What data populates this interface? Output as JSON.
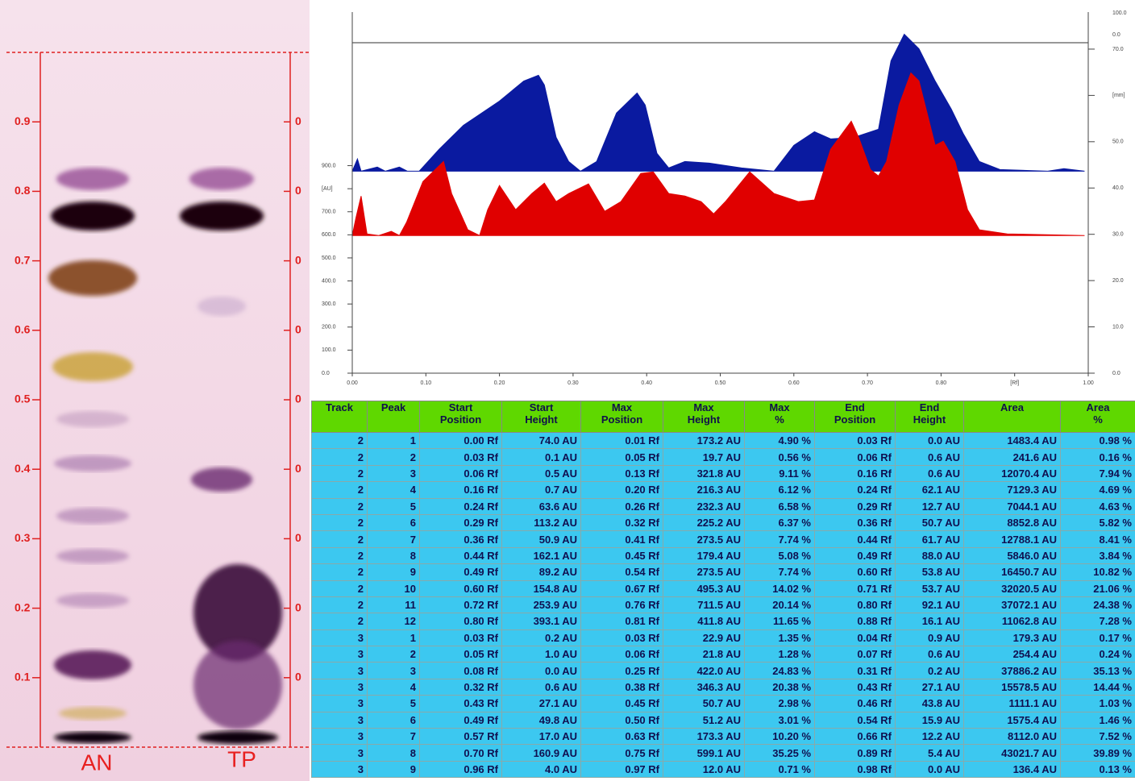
{
  "plate": {
    "ylim": [
      0,
      1
    ],
    "ticks": [
      0.1,
      0.2,
      0.3,
      0.4,
      0.5,
      0.6,
      0.7,
      0.8,
      0.9
    ],
    "right_tick_labels": [
      "0",
      "0",
      "0",
      "0",
      "0",
      "0",
      "0",
      "0",
      "0"
    ],
    "lanes": [
      "AN",
      "TP"
    ]
  },
  "densitogram": {
    "type": "area",
    "xlim": [
      0,
      1
    ],
    "ylim": [
      0,
      1566
    ],
    "y2lim": [
      0,
      78
    ],
    "xticks": [
      {
        "value": 0,
        "label": "0.00"
      },
      {
        "value": 0.1,
        "label": "0.10"
      },
      {
        "value": 0.2,
        "label": "0.20"
      },
      {
        "value": 0.3,
        "label": "0.30"
      },
      {
        "value": 0.4,
        "label": "0.40"
      },
      {
        "value": 0.5,
        "label": "0.50"
      },
      {
        "value": 0.6,
        "label": "0.60"
      },
      {
        "value": 0.7,
        "label": "0.70"
      },
      {
        "value": 0.8,
        "label": "0.80"
      },
      {
        "value": 0.9,
        "label": "[Rf]"
      },
      {
        "value": 1,
        "label": "1.00"
      }
    ],
    "yticks": [
      {
        "value": 0,
        "label": "0.0"
      },
      {
        "value": 100,
        "label": "100.0"
      },
      {
        "value": 200,
        "label": "200.0"
      },
      {
        "value": 300,
        "label": "300.0"
      },
      {
        "value": 400,
        "label": "400.0"
      },
      {
        "value": 500,
        "label": "500.0"
      },
      {
        "value": 600,
        "label": "600.0"
      },
      {
        "value": 700,
        "label": "700.0"
      },
      {
        "value": 800,
        "label": "[AU]"
      },
      {
        "value": 900,
        "label": "900.0"
      }
    ],
    "y2ticks": [
      {
        "value": 0,
        "label": "0.0"
      },
      {
        "value": 10,
        "label": "10.0"
      },
      {
        "value": 20,
        "label": "20.0"
      },
      {
        "value": 30,
        "label": "30.0"
      },
      {
        "value": 40,
        "label": "40.0"
      },
      {
        "value": 50,
        "label": "50.0"
      },
      {
        "value": 60,
        "label": "[mm]"
      },
      {
        "value": 70,
        "label": "70.0"
      }
    ],
    "y2_top_labels": [
      "100.0",
      "0.0"
    ],
    "series": [
      {
        "color": "#0a1aa0",
        "x": [
          0,
          0.007,
          0.012,
          0.034,
          0.045,
          0.064,
          0.075,
          0.091,
          0.118,
          0.151,
          0.2,
          0.233,
          0.253,
          0.261,
          0.277,
          0.294,
          0.31,
          0.332,
          0.359,
          0.387,
          0.398,
          0.414,
          0.43,
          0.452,
          0.485,
          0.529,
          0.573,
          0.6,
          0.628,
          0.65,
          0.682,
          0.715,
          0.732,
          0.75,
          0.77,
          0.792,
          0.814,
          0.83,
          0.852,
          0.88,
          0.945,
          0.967,
          0.995
        ],
        "values": [
          876,
          929,
          876,
          894,
          876,
          894,
          876,
          876,
          971,
          1075,
          1180,
          1267,
          1292,
          1250,
          1023,
          918,
          876,
          918,
          1128,
          1215,
          1163,
          953,
          890,
          918,
          911,
          890,
          876,
          988,
          1047,
          1016,
          1023,
          1058,
          1355,
          1470,
          1407,
          1267,
          1145,
          1040,
          918,
          883,
          876,
          887,
          876
        ]
      },
      {
        "color": "#e00000",
        "x": [
          0,
          0.005,
          0.012,
          0.02,
          0.036,
          0.053,
          0.064,
          0.074,
          0.096,
          0.124,
          0.135,
          0.157,
          0.173,
          0.184,
          0.2,
          0.222,
          0.244,
          0.261,
          0.277,
          0.294,
          0.321,
          0.343,
          0.365,
          0.392,
          0.409,
          0.43,
          0.452,
          0.474,
          0.491,
          0.507,
          0.54,
          0.573,
          0.606,
          0.628,
          0.65,
          0.678,
          0.688,
          0.704,
          0.715,
          0.726,
          0.743,
          0.759,
          0.77,
          0.781,
          0.792,
          0.803,
          0.819,
          0.836,
          0.852,
          0.89,
          0.995
        ],
        "values": [
          597,
          674,
          768,
          604,
          597,
          615,
          597,
          656,
          831,
          918,
          779,
          622,
          597,
          709,
          814,
          709,
          779,
          824,
          744,
          779,
          821,
          702,
          744,
          866,
          873,
          779,
          768,
          744,
          691,
          744,
          873,
          779,
          744,
          751,
          971,
          1093,
          1023,
          883,
          855,
          918,
          1163,
          1302,
          1267,
          1128,
          988,
          1006,
          918,
          709,
          622,
          604,
          597
        ]
      }
    ]
  },
  "table": {
    "columns": [
      [
        "Track"
      ],
      [
        "Peak"
      ],
      [
        "Start",
        "Position"
      ],
      [
        "Start",
        "Height"
      ],
      [
        "Max",
        "Position"
      ],
      [
        "Max",
        "Height"
      ],
      [
        "Max",
        "%"
      ],
      [
        "End",
        "Position"
      ],
      [
        "End",
        "Height"
      ],
      [
        "Area"
      ],
      [
        "Area",
        "%"
      ]
    ],
    "rows": [
      [
        2,
        1,
        "0.00 Rf",
        "74.0 AU",
        "0.01 Rf",
        "173.2 AU",
        "4.90 %",
        "0.03 Rf",
        "0.0 AU",
        "1483.4 AU",
        "0.98 %"
      ],
      [
        2,
        2,
        "0.03 Rf",
        "0.1 AU",
        "0.05 Rf",
        "19.7 AU",
        "0.56 %",
        "0.06 Rf",
        "0.6 AU",
        "241.6 AU",
        "0.16 %"
      ],
      [
        2,
        3,
        "0.06 Rf",
        "0.5 AU",
        "0.13 Rf",
        "321.8 AU",
        "9.11 %",
        "0.16 Rf",
        "0.6 AU",
        "12070.4 AU",
        "7.94 %"
      ],
      [
        2,
        4,
        "0.16 Rf",
        "0.7 AU",
        "0.20 Rf",
        "216.3 AU",
        "6.12 %",
        "0.24 Rf",
        "62.1 AU",
        "7129.3 AU",
        "4.69 %"
      ],
      [
        2,
        5,
        "0.24 Rf",
        "63.6 AU",
        "0.26 Rf",
        "232.3 AU",
        "6.58 %",
        "0.29 Rf",
        "12.7 AU",
        "7044.1 AU",
        "4.63 %"
      ],
      [
        2,
        6,
        "0.29 Rf",
        "113.2 AU",
        "0.32 Rf",
        "225.2 AU",
        "6.37 %",
        "0.36 Rf",
        "50.7 AU",
        "8852.8 AU",
        "5.82 %"
      ],
      [
        2,
        7,
        "0.36 Rf",
        "50.9 AU",
        "0.41 Rf",
        "273.5 AU",
        "7.74 %",
        "0.44 Rf",
        "61.7 AU",
        "12788.1 AU",
        "8.41 %"
      ],
      [
        2,
        8,
        "0.44 Rf",
        "162.1 AU",
        "0.45 Rf",
        "179.4 AU",
        "5.08 %",
        "0.49 Rf",
        "88.0 AU",
        "5846.0 AU",
        "3.84 %"
      ],
      [
        2,
        9,
        "0.49 Rf",
        "89.2 AU",
        "0.54 Rf",
        "273.5 AU",
        "7.74 %",
        "0.60 Rf",
        "53.8 AU",
        "16450.7 AU",
        "10.82 %"
      ],
      [
        2,
        10,
        "0.60 Rf",
        "154.8 AU",
        "0.67 Rf",
        "495.3 AU",
        "14.02 %",
        "0.71 Rf",
        "53.7 AU",
        "32020.5 AU",
        "21.06 %"
      ],
      [
        2,
        11,
        "0.72 Rf",
        "253.9 AU",
        "0.76 Rf",
        "711.5 AU",
        "20.14 %",
        "0.80 Rf",
        "92.1 AU",
        "37072.1 AU",
        "24.38 %"
      ],
      [
        2,
        12,
        "0.80 Rf",
        "393.1 AU",
        "0.81 Rf",
        "411.8 AU",
        "11.65 %",
        "0.88 Rf",
        "16.1 AU",
        "11062.8 AU",
        "7.28 %"
      ],
      [
        3,
        1,
        "0.03 Rf",
        "0.2 AU",
        "0.03 Rf",
        "22.9 AU",
        "1.35 %",
        "0.04 Rf",
        "0.9 AU",
        "179.3 AU",
        "0.17 %"
      ],
      [
        3,
        2,
        "0.05 Rf",
        "1.0 AU",
        "0.06 Rf",
        "21.8 AU",
        "1.28 %",
        "0.07 Rf",
        "0.6 AU",
        "254.4 AU",
        "0.24 %"
      ],
      [
        3,
        3,
        "0.08 Rf",
        "0.0 AU",
        "0.25 Rf",
        "422.0 AU",
        "24.83 %",
        "0.31 Rf",
        "0.2 AU",
        "37886.2 AU",
        "35.13 %"
      ],
      [
        3,
        4,
        "0.32 Rf",
        "0.6 AU",
        "0.38 Rf",
        "346.3 AU",
        "20.38 %",
        "0.43 Rf",
        "27.1 AU",
        "15578.5 AU",
        "14.44 %"
      ],
      [
        3,
        5,
        "0.43 Rf",
        "27.1 AU",
        "0.45 Rf",
        "50.7 AU",
        "2.98 %",
        "0.46 Rf",
        "43.8 AU",
        "1111.1 AU",
        "1.03 %"
      ],
      [
        3,
        6,
        "0.49 Rf",
        "49.8 AU",
        "0.50 Rf",
        "51.2 AU",
        "3.01 %",
        "0.54 Rf",
        "15.9 AU",
        "1575.4 AU",
        "1.46 %"
      ],
      [
        3,
        7,
        "0.57 Rf",
        "17.0 AU",
        "0.63 Rf",
        "173.3 AU",
        "10.20 %",
        "0.66 Rf",
        "12.2 AU",
        "8112.0 AU",
        "7.52 %"
      ],
      [
        3,
        8,
        "0.70 Rf",
        "160.9 AU",
        "0.75 Rf",
        "599.1 AU",
        "35.25 %",
        "0.89 Rf",
        "5.4 AU",
        "43021.7 AU",
        "39.89 %"
      ],
      [
        3,
        9,
        "0.96 Rf",
        "4.0 AU",
        "0.97 Rf",
        "12.0 AU",
        "0.71 %",
        "0.98 Rf",
        "0.0 AU",
        "136.4 AU",
        "0.13 %"
      ]
    ]
  }
}
